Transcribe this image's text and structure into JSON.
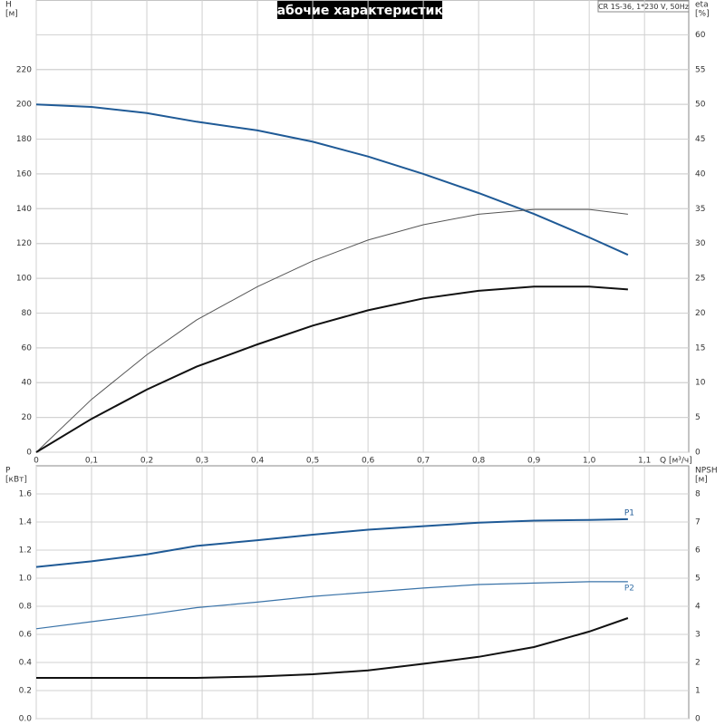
{
  "title": "Рабочие характеристики",
  "pump_label": "CR 1S-36, 1*230 V, 50Hz",
  "chart_data": [
    {
      "type": "line",
      "ylabel": "H",
      "yunit": "[м]",
      "y2label": "eta",
      "y2unit": "[%]",
      "xlabel": "Q [м³/ч]",
      "x": [
        0,
        0.1,
        0.2,
        0.29,
        0.4,
        0.5,
        0.6,
        0.7,
        0.8,
        0.9,
        1.0,
        1.07
      ],
      "xlim": [
        0,
        1.18
      ],
      "xticks": [
        0,
        {
          "value": 0.1,
          "label": "0,1"
        },
        {
          "value": 0.2,
          "label": "0,2"
        },
        {
          "value": 0.3,
          "label": "0,3"
        },
        {
          "value": 0.4,
          "label": "0,4"
        },
        {
          "value": 0.5,
          "label": "0,5"
        },
        {
          "value": 0.6,
          "label": "0,6"
        },
        {
          "value": 0.7,
          "label": "0,7"
        },
        {
          "value": 0.8,
          "label": "0,8"
        },
        {
          "value": 0.9,
          "label": "0,9"
        },
        {
          "value": 1.0,
          "label": "1,0"
        },
        {
          "value": 1.1,
          "label": "1,1"
        }
      ],
      "ylim": [
        0,
        260
      ],
      "yticks": [
        0,
        20,
        40,
        60,
        80,
        100,
        120,
        140,
        160,
        180,
        200,
        220
      ],
      "y2lim": [
        0,
        65
      ],
      "y2ticks": [
        0,
        5,
        10,
        15,
        20,
        25,
        30,
        35,
        40,
        45,
        50,
        55,
        60
      ],
      "grid": true,
      "series": [
        {
          "color": "#1f5a96",
          "width": 2,
          "values": [
            200,
            198.5,
            195,
            190,
            185,
            178.5,
            170,
            160,
            149,
            137,
            123.5,
            113.5
          ]
        },
        {
          "color": "#555555",
          "width": 1,
          "axis": "y2",
          "values": [
            0,
            7.6,
            14,
            19,
            23.8,
            27.5,
            30.5,
            32.7,
            34.2,
            34.9,
            34.9,
            34.2
          ]
        },
        {
          "color": "#111111",
          "width": 2,
          "axis": "y2",
          "values": [
            0,
            4.8,
            9,
            12.3,
            15.5,
            18.2,
            20.4,
            22.1,
            23.2,
            23.8,
            23.8,
            23.4
          ]
        }
      ]
    },
    {
      "type": "line",
      "ylabel": "P",
      "yunit": "[кВт]",
      "y2label": "NPSH",
      "y2unit": "[м]",
      "x": [
        0,
        0.1,
        0.2,
        0.29,
        0.4,
        0.5,
        0.6,
        0.7,
        0.8,
        0.9,
        1.0,
        1.07
      ],
      "xlim": [
        0,
        1.18
      ],
      "ylim": [
        0,
        1.8
      ],
      "yticks": [
        {
          "value": 0,
          "label": "0.0"
        },
        0.2,
        0.4,
        0.6,
        0.8,
        {
          "value": 1,
          "label": "1.0"
        },
        1.2,
        1.4,
        1.6
      ],
      "y2lim": [
        0,
        9
      ],
      "y2ticks": [
        0,
        1,
        2,
        3,
        4,
        5,
        6,
        7,
        8
      ],
      "grid": true,
      "series": [
        {
          "name": "P1",
          "color": "#1f5a96",
          "width": 2,
          "values": [
            1.08,
            1.12,
            1.17,
            1.23,
            1.27,
            1.31,
            1.345,
            1.37,
            1.395,
            1.41,
            1.415,
            1.42
          ]
        },
        {
          "name": "P2",
          "color": "#3a73a8",
          "width": 1.2,
          "values": [
            0.64,
            0.69,
            0.74,
            0.79,
            0.83,
            0.87,
            0.9,
            0.93,
            0.955,
            0.965,
            0.975,
            0.975
          ]
        },
        {
          "color": "#111111",
          "width": 2,
          "axis": "y2",
          "values": [
            1.45,
            1.45,
            1.45,
            1.45,
            1.5,
            1.58,
            1.72,
            1.95,
            2.2,
            2.55,
            3.1,
            3.58
          ]
        }
      ]
    }
  ]
}
